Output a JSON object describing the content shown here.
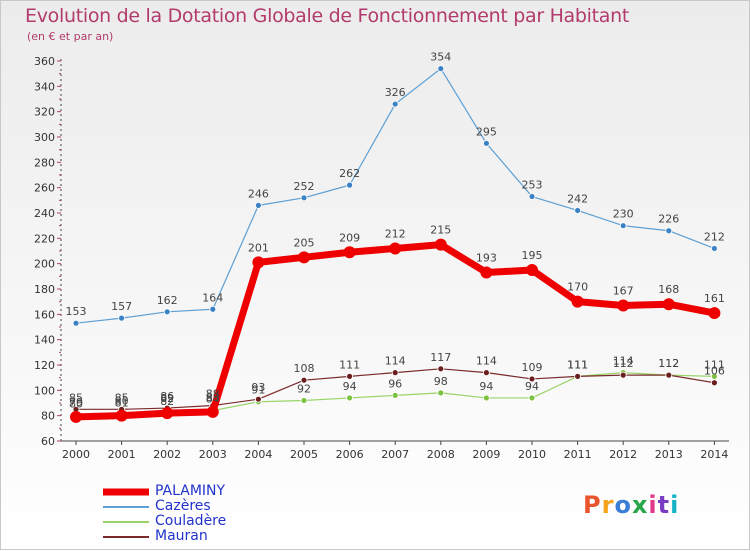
{
  "title": "Evolution de la Dotation Globale de Fonctionnement par Habitant",
  "subtitle": "(en € et par an)",
  "brand": {
    "text": "Proxiti",
    "colors": [
      "#e8542b",
      "#f5a31a",
      "#3a7ed8",
      "#2aa64a",
      "#e23a8a",
      "#7a3cc4",
      "#16b3c8"
    ]
  },
  "chart_data": {
    "type": "line",
    "x": [
      "2000",
      "2001",
      "2002",
      "2003",
      "2004",
      "2005",
      "2006",
      "2007",
      "2008",
      "2009",
      "2010",
      "2011",
      "2012",
      "2013",
      "2014"
    ],
    "ylim": [
      60,
      360
    ],
    "yticks": [
      60,
      80,
      100,
      120,
      140,
      160,
      180,
      200,
      220,
      240,
      260,
      280,
      300,
      320,
      340,
      360
    ],
    "grid": false,
    "legend_position": "bottom-left",
    "series": [
      {
        "name": "Cazères",
        "color": "#5d9fd3",
        "point_color": "#3b82c4",
        "line_width": 1.2,
        "marker_r": 3,
        "values": [
          153,
          157,
          162,
          164,
          246,
          252,
          262,
          326,
          354,
          295,
          253,
          242,
          230,
          226,
          212
        ],
        "labels": [
          "153",
          "157",
          "162",
          "164",
          "246",
          "252",
          "262",
          "326",
          "354",
          "295",
          "253",
          "242",
          "230",
          "226",
          "212"
        ]
      },
      {
        "name": "Couladère",
        "color": "#9ad469",
        "point_color": "#7cc242",
        "line_width": 1.2,
        "marker_r": 3,
        "values": [
          80,
          81,
          82,
          84,
          91,
          92,
          94,
          96,
          98,
          94,
          94,
          111,
          114,
          112,
          111
        ],
        "labels": [
          "80",
          "81",
          "82",
          "84",
          "91",
          "92",
          "94",
          "96",
          "98",
          "94",
          "94",
          "111",
          "114",
          "112",
          "111"
        ]
      },
      {
        "name": "Mauran",
        "color": "#7a2a2a",
        "point_color": "#6b1e1e",
        "line_width": 1.2,
        "marker_r": 3,
        "values": [
          85,
          85,
          86,
          88,
          93,
          108,
          111,
          114,
          117,
          114,
          109,
          111,
          112,
          112,
          106
        ],
        "labels": [
          "85",
          "85",
          "86",
          "88",
          "93",
          "108",
          "111",
          "114",
          "117",
          "114",
          "109",
          "111",
          "112",
          "112",
          "106"
        ]
      },
      {
        "name": "PALAMINY",
        "color": "#ee0000",
        "point_color": "#ee0000",
        "line_width": 7,
        "marker_r": 6,
        "values": [
          79,
          80,
          82,
          83,
          201,
          205,
          209,
          212,
          215,
          193,
          195,
          170,
          167,
          168,
          161
        ],
        "labels": [
          "79",
          "80",
          "82",
          "83",
          "201",
          "205",
          "209",
          "212",
          "215",
          "193",
          "195",
          "170",
          "167",
          "168",
          "161"
        ]
      }
    ]
  },
  "legend": [
    {
      "label": "PALAMINY",
      "color": "#ee0000",
      "thickness": 7
    },
    {
      "label": "Cazères",
      "color": "#5d9fd3",
      "thickness": 2
    },
    {
      "label": "Couladère",
      "color": "#9ad469",
      "thickness": 2
    },
    {
      "label": "Mauran",
      "color": "#7a2a2a",
      "thickness": 2
    }
  ]
}
